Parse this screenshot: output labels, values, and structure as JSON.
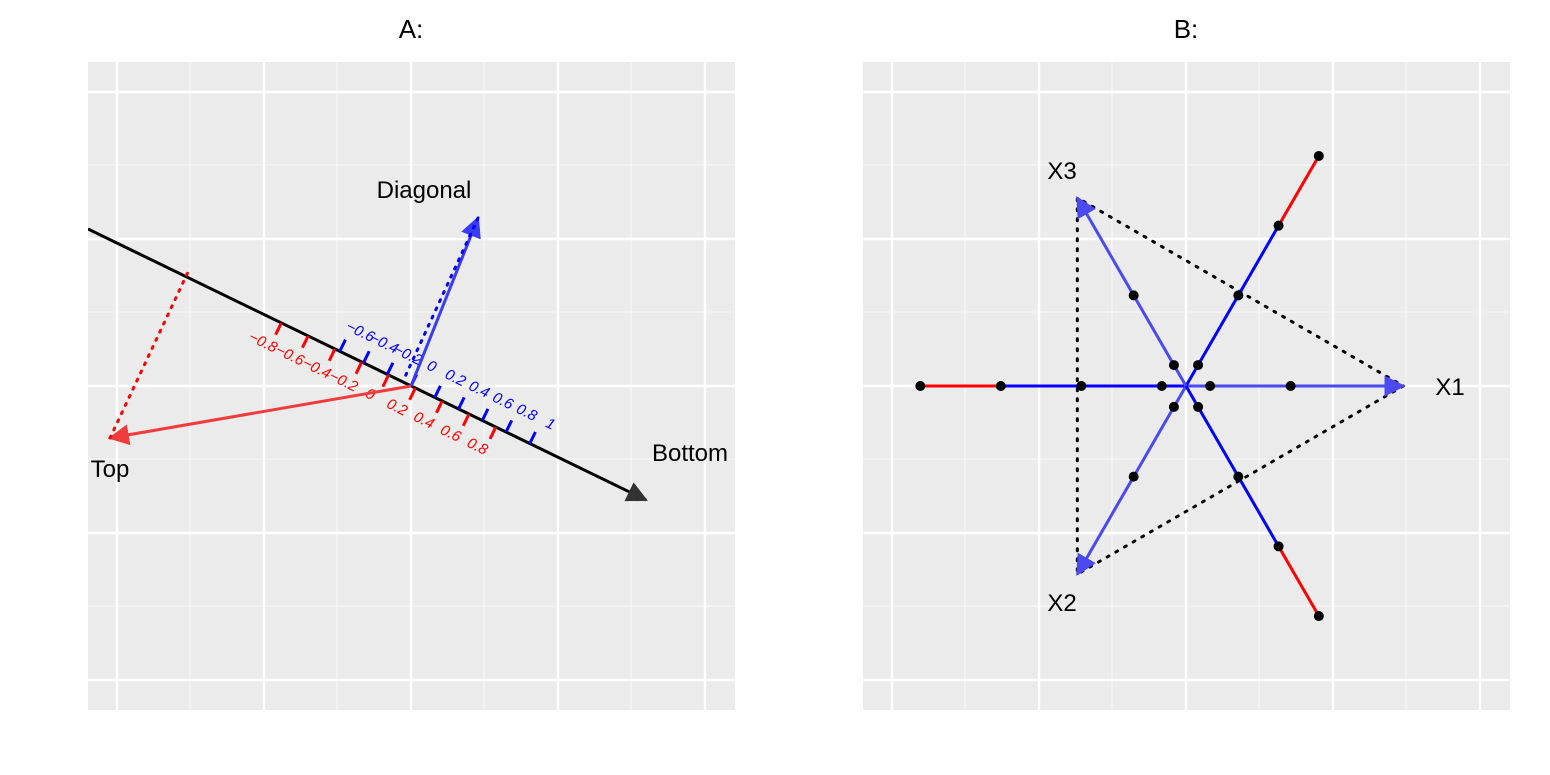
{
  "chart_data": [
    {
      "type": "scatter",
      "title": "A:",
      "grid": true,
      "calibrated_axis": {
        "blue_ticks": [
          "−0.6",
          "−0.4",
          "−0.2",
          "0",
          "0.2",
          "0.4",
          "0.6",
          "0.8",
          "1"
        ],
        "red_ticks": [
          "−0.8",
          "−0.6",
          "−0.4",
          "−0.2",
          "0",
          "0.2",
          "0.4",
          "0.6",
          "0.8"
        ]
      },
      "vectors": [
        {
          "label": "Diagonal",
          "color": "#0000ff"
        },
        {
          "label": "Top",
          "color": "#ff0000"
        },
        {
          "label": "Bottom",
          "color": "#000000"
        }
      ]
    },
    {
      "type": "scatter",
      "title": "B:",
      "grid": true,
      "vectors": [
        {
          "label": "X1",
          "angle_deg": 0
        },
        {
          "label": "X2",
          "angle_deg": 240
        },
        {
          "label": "X3",
          "angle_deg": 120
        }
      ],
      "colors": {
        "axis": "#0000ff",
        "extension": "#ff0000",
        "triangle": "#000000"
      }
    }
  ]
}
